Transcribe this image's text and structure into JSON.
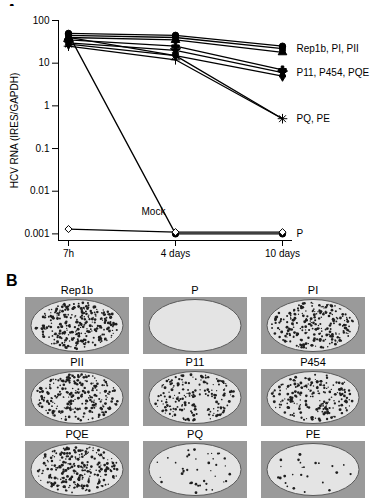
{
  "chart_data": {
    "type": "line",
    "title": "A",
    "y_label": "HCV RNA (IRES/GAPDH)",
    "x": [
      "7h",
      "4 days",
      "10 days"
    ],
    "log": "y",
    "ylim": [
      0.0007,
      100
    ],
    "yticks": [
      0.001,
      0.01,
      0.1,
      1,
      10,
      100
    ],
    "grid": false,
    "series": [
      {
        "name": "Rep1b",
        "color": "#000000",
        "marker": "circle",
        "values": [
          50,
          45,
          25
        ]
      },
      {
        "name": "PI",
        "color": "#000000",
        "marker": "square",
        "values": [
          45,
          40,
          22
        ]
      },
      {
        "name": "PII",
        "color": "#000000",
        "marker": "triangle",
        "values": [
          40,
          35,
          18
        ]
      },
      {
        "name": "P11",
        "color": "#000000",
        "marker": "cross",
        "values": [
          35,
          25,
          7
        ]
      },
      {
        "name": "P454",
        "color": "#000000",
        "marker": "star",
        "values": [
          30,
          20,
          6
        ]
      },
      {
        "name": "PQE",
        "color": "#000000",
        "marker": "diamond",
        "values": [
          28,
          15,
          5
        ]
      },
      {
        "name": "PQ",
        "color": "#000000",
        "marker": "times",
        "values": [
          40,
          15,
          0.5
        ]
      },
      {
        "name": "PE",
        "color": "#000000",
        "marker": "plus",
        "values": [
          25,
          12,
          0.5
        ]
      },
      {
        "name": "P",
        "color": "#000000",
        "marker": "circle",
        "values": [
          48,
          0.001,
          0.001
        ]
      },
      {
        "name": "Mock",
        "color": "#000000",
        "marker": "diamond2",
        "values": [
          0.0013,
          0.0011,
          0.0011
        ]
      }
    ],
    "annotations": [
      {
        "text": "Rep1b, PI, PII",
        "x": "10 days",
        "y": 22
      },
      {
        "text": "P11, P454, PQE",
        "x": "10 days",
        "y": 6
      },
      {
        "text": "PQ, PE",
        "x": "10 days",
        "y": 0.5
      },
      {
        "text": "P",
        "x": "10 days",
        "y": 0.001
      },
      {
        "text": "Mock",
        "x": "4 days",
        "y": 0.003
      }
    ]
  },
  "panel_b": {
    "label": "B",
    "plates": [
      {
        "name": "Rep1b",
        "colonies": 300
      },
      {
        "name": "P",
        "colonies": 0
      },
      {
        "name": "PI",
        "colonies": 250
      },
      {
        "name": "PII",
        "colonies": 250
      },
      {
        "name": "P11",
        "colonies": 180
      },
      {
        "name": "P454",
        "colonies": 200
      },
      {
        "name": "PQE",
        "colonies": 260
      },
      {
        "name": "PQ",
        "colonies": 40
      },
      {
        "name": "PE",
        "colonies": 25
      }
    ]
  }
}
